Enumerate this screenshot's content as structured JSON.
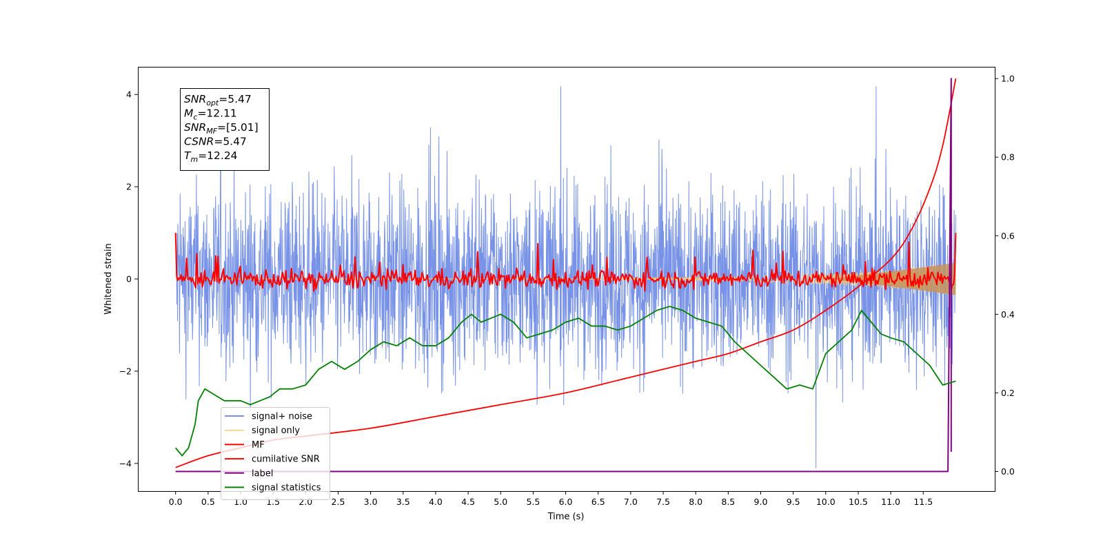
{
  "chart_data": {
    "type": "line",
    "xlabel": "Time (s)",
    "ylabel_left": "Whitened strain",
    "ylabel_right": "",
    "xlim": [
      -0.58,
      12.6
    ],
    "ylim_left": [
      -4.6,
      4.6
    ],
    "ylim_right": [
      -0.05,
      1.03
    ],
    "x_ticks": [
      0.0,
      0.5,
      1.0,
      1.5,
      2.0,
      2.5,
      3.0,
      3.5,
      4.0,
      4.5,
      5.0,
      5.5,
      6.0,
      6.5,
      7.0,
      7.5,
      8.0,
      8.5,
      9.0,
      9.5,
      10.0,
      10.5,
      11.0,
      11.5
    ],
    "x_tick_labels": [
      "0.0",
      "0.5",
      "1.0",
      "1.5",
      "2.0",
      "2.5",
      "3.0",
      "3.5",
      "4.0",
      "4.5",
      "5.0",
      "5.5",
      "6.0",
      "6.5",
      "7.0",
      "7.5",
      "8.0",
      "8.5",
      "9.0",
      "9.5",
      "10.0",
      "10.5",
      "11.0",
      "11.5"
    ],
    "y_ticks_left": [
      -4,
      -2,
      0,
      2,
      4
    ],
    "y_tick_labels_left": [
      "−4",
      "−2",
      "0",
      "2",
      "4"
    ],
    "y_ticks_right": [
      0.0,
      0.2,
      0.4,
      0.6,
      0.8,
      1.0
    ],
    "y_tick_labels_right": [
      "0.0",
      "0.2",
      "0.4",
      "0.6",
      "0.8",
      "1.0"
    ],
    "annotation": {
      "lines": [
        {
          "sym": "SNR",
          "sub": "opt",
          "value": "=5.47"
        },
        {
          "sym": "M",
          "sub": "c",
          "value": "=12.11"
        },
        {
          "sym": "SNR",
          "sub": "MF",
          "value": "=[5.01]"
        },
        {
          "sym": "CSNR",
          "sub": "",
          "value": "=5.47"
        },
        {
          "sym": "T",
          "sub": "m",
          "value": "=12.24"
        }
      ]
    },
    "legend_position": "lower-left",
    "series": [
      {
        "name": "signal+ noise",
        "axis": "left",
        "color": "#7792e6",
        "style": "noise",
        "x_range": [
          0,
          12.0
        ],
        "band_lo": -2.2,
        "band_hi": 2.2,
        "peak_max": 4.17,
        "peak_min": -4.1
      },
      {
        "name": "signal only",
        "axis": "left",
        "color": "#f5c87a",
        "style": "chirp",
        "x_range": [
          0,
          12.0
        ],
        "amp_end": 0.35
      },
      {
        "name": "MF",
        "axis": "left",
        "color": "#ff0000",
        "style": "mf",
        "x_range": [
          0,
          12.0
        ],
        "start": 1.0,
        "end": 1.0,
        "max_peak": 0.8
      },
      {
        "name": "cumilative SNR",
        "axis": "right",
        "color": "#ff0000",
        "style": "curve",
        "x": [
          0.0,
          0.5,
          1.0,
          1.5,
          2.0,
          3.0,
          4.0,
          5.0,
          6.0,
          7.0,
          8.0,
          8.5,
          9.0,
          9.5,
          10.0,
          10.5,
          11.0,
          11.3,
          11.6,
          11.8,
          12.0
        ],
        "y": [
          0.01,
          0.04,
          0.06,
          0.08,
          0.09,
          0.11,
          0.14,
          0.17,
          0.2,
          0.24,
          0.28,
          0.3,
          0.33,
          0.36,
          0.41,
          0.47,
          0.54,
          0.61,
          0.72,
          0.83,
          1.0
        ]
      },
      {
        "name": "label",
        "axis": "right",
        "color": "#800080",
        "style": "step",
        "x": [
          0.0,
          11.88,
          11.93,
          11.93
        ],
        "y": [
          0.0,
          0.0,
          1.0,
          0.05
        ]
      },
      {
        "name": "signal statistics",
        "axis": "right",
        "color": "#008000",
        "style": "curve",
        "x": [
          0.0,
          0.1,
          0.2,
          0.3,
          0.35,
          0.45,
          0.55,
          0.65,
          0.75,
          0.85,
          1.0,
          1.15,
          1.3,
          1.45,
          1.6,
          1.8,
          2.0,
          2.2,
          2.4,
          2.6,
          2.8,
          3.0,
          3.2,
          3.4,
          3.6,
          3.8,
          4.0,
          4.2,
          4.4,
          4.55,
          4.7,
          4.85,
          5.0,
          5.2,
          5.4,
          5.6,
          5.8,
          6.0,
          6.2,
          6.4,
          6.6,
          6.8,
          7.0,
          7.2,
          7.4,
          7.6,
          7.8,
          8.0,
          8.2,
          8.4,
          8.6,
          8.8,
          9.0,
          9.2,
          9.4,
          9.6,
          9.8,
          10.0,
          10.2,
          10.4,
          10.55,
          10.7,
          10.85,
          11.0,
          11.2,
          11.4,
          11.6,
          11.8,
          12.0
        ],
        "y": [
          0.06,
          0.04,
          0.06,
          0.12,
          0.18,
          0.21,
          0.2,
          0.19,
          0.18,
          0.18,
          0.18,
          0.17,
          0.18,
          0.19,
          0.21,
          0.21,
          0.22,
          0.26,
          0.28,
          0.26,
          0.28,
          0.31,
          0.33,
          0.32,
          0.34,
          0.32,
          0.32,
          0.34,
          0.38,
          0.4,
          0.38,
          0.39,
          0.4,
          0.38,
          0.34,
          0.35,
          0.36,
          0.38,
          0.39,
          0.37,
          0.37,
          0.36,
          0.37,
          0.39,
          0.41,
          0.42,
          0.41,
          0.39,
          0.38,
          0.37,
          0.33,
          0.3,
          0.27,
          0.24,
          0.21,
          0.22,
          0.21,
          0.3,
          0.33,
          0.36,
          0.41,
          0.38,
          0.35,
          0.34,
          0.33,
          0.3,
          0.27,
          0.22,
          0.23
        ]
      }
    ]
  }
}
